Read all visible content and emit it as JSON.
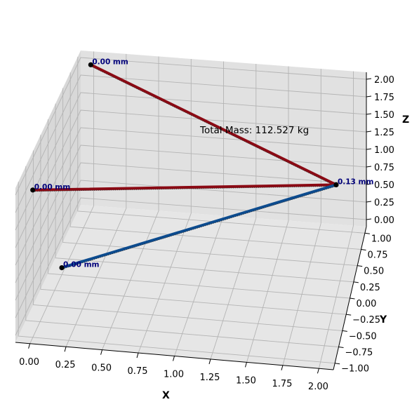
{
  "chart_data": {
    "type": "3d-line",
    "title": "",
    "xlabel": "X",
    "ylabel": "Y",
    "zlabel": "Z",
    "xlim": [
      -0.1,
      2.1
    ],
    "ylim": [
      -1.1,
      1.1
    ],
    "zlim": [
      -0.1,
      2.1
    ],
    "xticks": [
      "0.00",
      "0.25",
      "0.50",
      "0.75",
      "1.00",
      "1.25",
      "1.50",
      "1.75",
      "2.00"
    ],
    "yticks": [
      "−1.00",
      "−0.75",
      "−0.50",
      "−0.25",
      "0.00",
      "0.25",
      "0.50",
      "0.75",
      "1.00"
    ],
    "zticks": [
      "0.00",
      "0.25",
      "0.50",
      "0.75",
      "1.00",
      "1.25",
      "1.50",
      "1.75",
      "2.00"
    ],
    "grid": true,
    "nodes": [
      {
        "x": 0.0,
        "y": 1.0,
        "z": 2.0,
        "label": "0.00 mm"
      },
      {
        "x": 0.0,
        "y": -1.0,
        "z": 2.0,
        "label": "0.00 mm"
      },
      {
        "x": 0.0,
        "y": 0.0,
        "z": 0.0,
        "label": "0.00 mm"
      },
      {
        "x": 2.0,
        "y": 0.0,
        "z": 1.5,
        "label": "0.13 mm"
      }
    ],
    "members": [
      {
        "from": 0,
        "to": 3,
        "kind": "tension",
        "color": "#8b0a14"
      },
      {
        "from": 1,
        "to": 3,
        "kind": "tension",
        "color": "#8b0a14"
      },
      {
        "from": 2,
        "to": 3,
        "kind": "compression",
        "color": "#0c4b8e"
      }
    ],
    "annotation": "Total Mass: 112.527 kg",
    "colors": {
      "tension": "#8b0a14",
      "compression": "#0c4b8e",
      "node": "#000000",
      "node_label": "#00007a",
      "pane_left": "#d8d8d8",
      "pane_back": "#e1e1e1",
      "pane_floor": "#e6e6e6",
      "grid": "#b4b4b4"
    }
  }
}
